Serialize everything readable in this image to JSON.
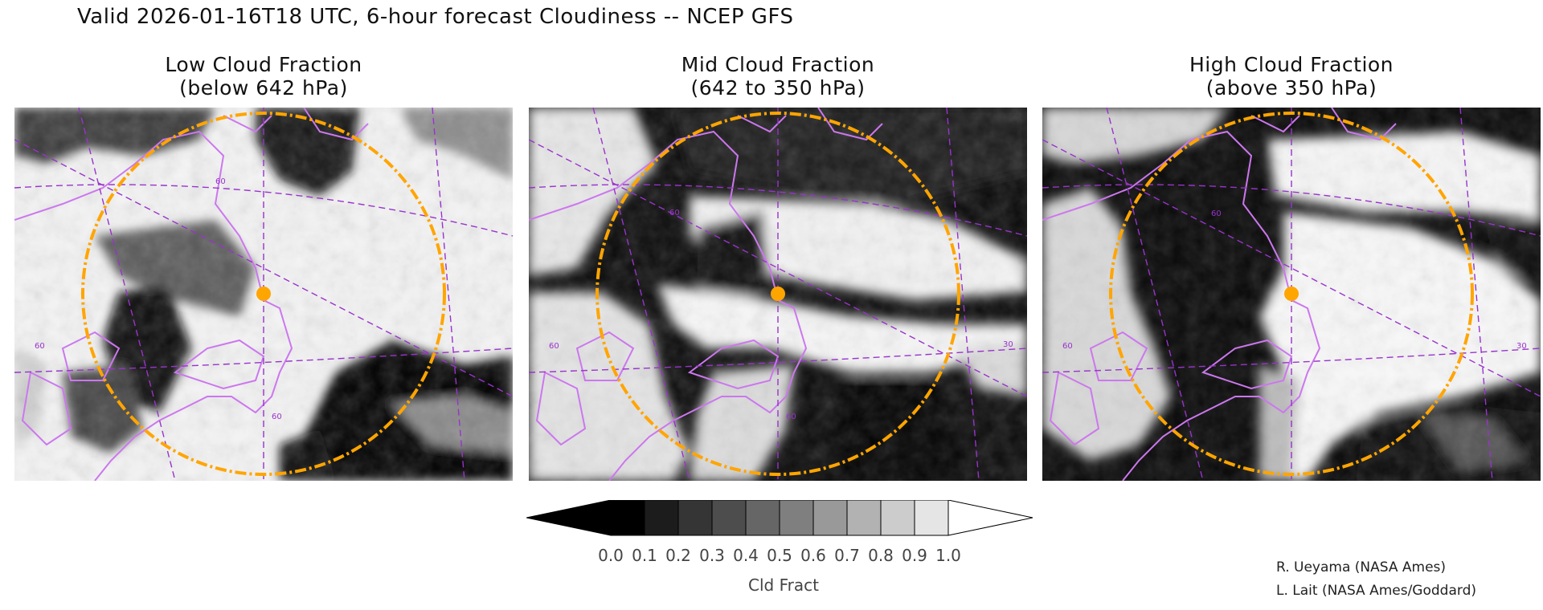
{
  "header": {
    "title": "Valid 2026-01-16T18 UTC, 6-hour forecast Cloudiness -- NCEP GFS"
  },
  "panels": [
    {
      "title_line1": "Low Cloud Fraction",
      "title_line2": "(below 642 hPa)",
      "grid_labels": [
        "60",
        "60",
        "60"
      ]
    },
    {
      "title_line1": "Mid Cloud Fraction",
      "title_line2": "(642 to 350 hPa)",
      "grid_labels": [
        "60",
        "60",
        "60",
        "30"
      ]
    },
    {
      "title_line1": "High Cloud Fraction",
      "title_line2": "(above 350 hPa)",
      "grid_labels": [
        "60",
        "60",
        "30"
      ]
    }
  ],
  "colorbar": {
    "ticks": [
      "0.0",
      "0.1",
      "0.2",
      "0.3",
      "0.4",
      "0.5",
      "0.6",
      "0.7",
      "0.8",
      "0.9",
      "1.0"
    ],
    "label": "Cld Fract",
    "colors": [
      "#000000",
      "#1c1c1c",
      "#353535",
      "#4d4d4d",
      "#666666",
      "#7f7f7f",
      "#999999",
      "#b2b2b2",
      "#cccccc",
      "#e5e5e5",
      "#ffffff"
    ]
  },
  "credits": {
    "line1": "R. Ueyama (NASA Ames)",
    "line2": "L. Lait (NASA Ames/Goddard)"
  },
  "colors": {
    "range_ring": "#ffa500",
    "coastline": "#cc77ee",
    "gridline": "#9933cc"
  }
}
